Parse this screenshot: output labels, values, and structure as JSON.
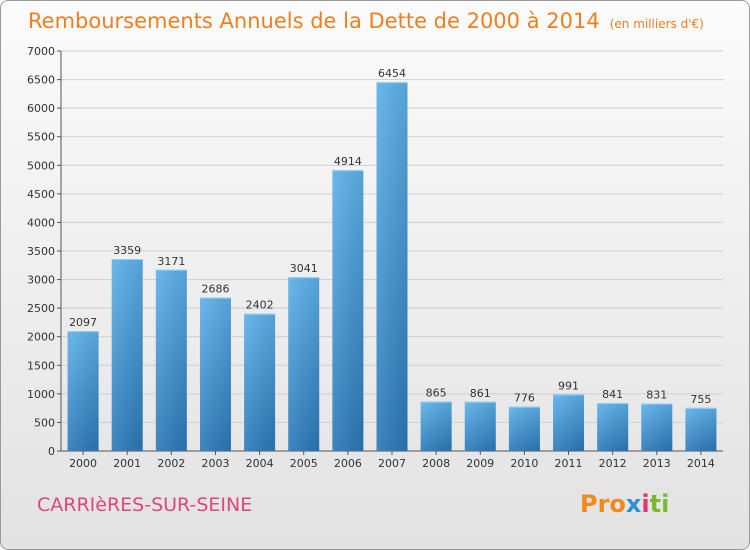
{
  "chart_data": {
    "type": "bar",
    "title": "Remboursements Annuels de la Dette de 2000 à 2014",
    "unit_note": "(en milliers d'€)",
    "categories": [
      "2000",
      "2001",
      "2002",
      "2003",
      "2004",
      "2005",
      "2006",
      "2007",
      "2008",
      "2009",
      "2010",
      "2011",
      "2012",
      "2013",
      "2014"
    ],
    "values": [
      2097,
      3359,
      3171,
      2686,
      2402,
      3041,
      4914,
      6454,
      865,
      861,
      776,
      991,
      841,
      831,
      755
    ],
    "ylim": [
      0,
      7000
    ],
    "yticks": [
      0,
      500,
      1000,
      1500,
      2000,
      2500,
      3000,
      3500,
      4000,
      4500,
      5000,
      5500,
      6000,
      6500,
      7000
    ],
    "grid": true,
    "bar_color_top": "#5cb0e8",
    "bar_color_bottom": "#2a78b8"
  },
  "commune": "CARRIèRES-SUR-SEINE",
  "logo": {
    "p1": "Pro",
    "p2": "x",
    "p3": "i",
    "p4": "ti"
  },
  "colors": {
    "title": "#f07e1f",
    "commune": "#e0457c"
  }
}
